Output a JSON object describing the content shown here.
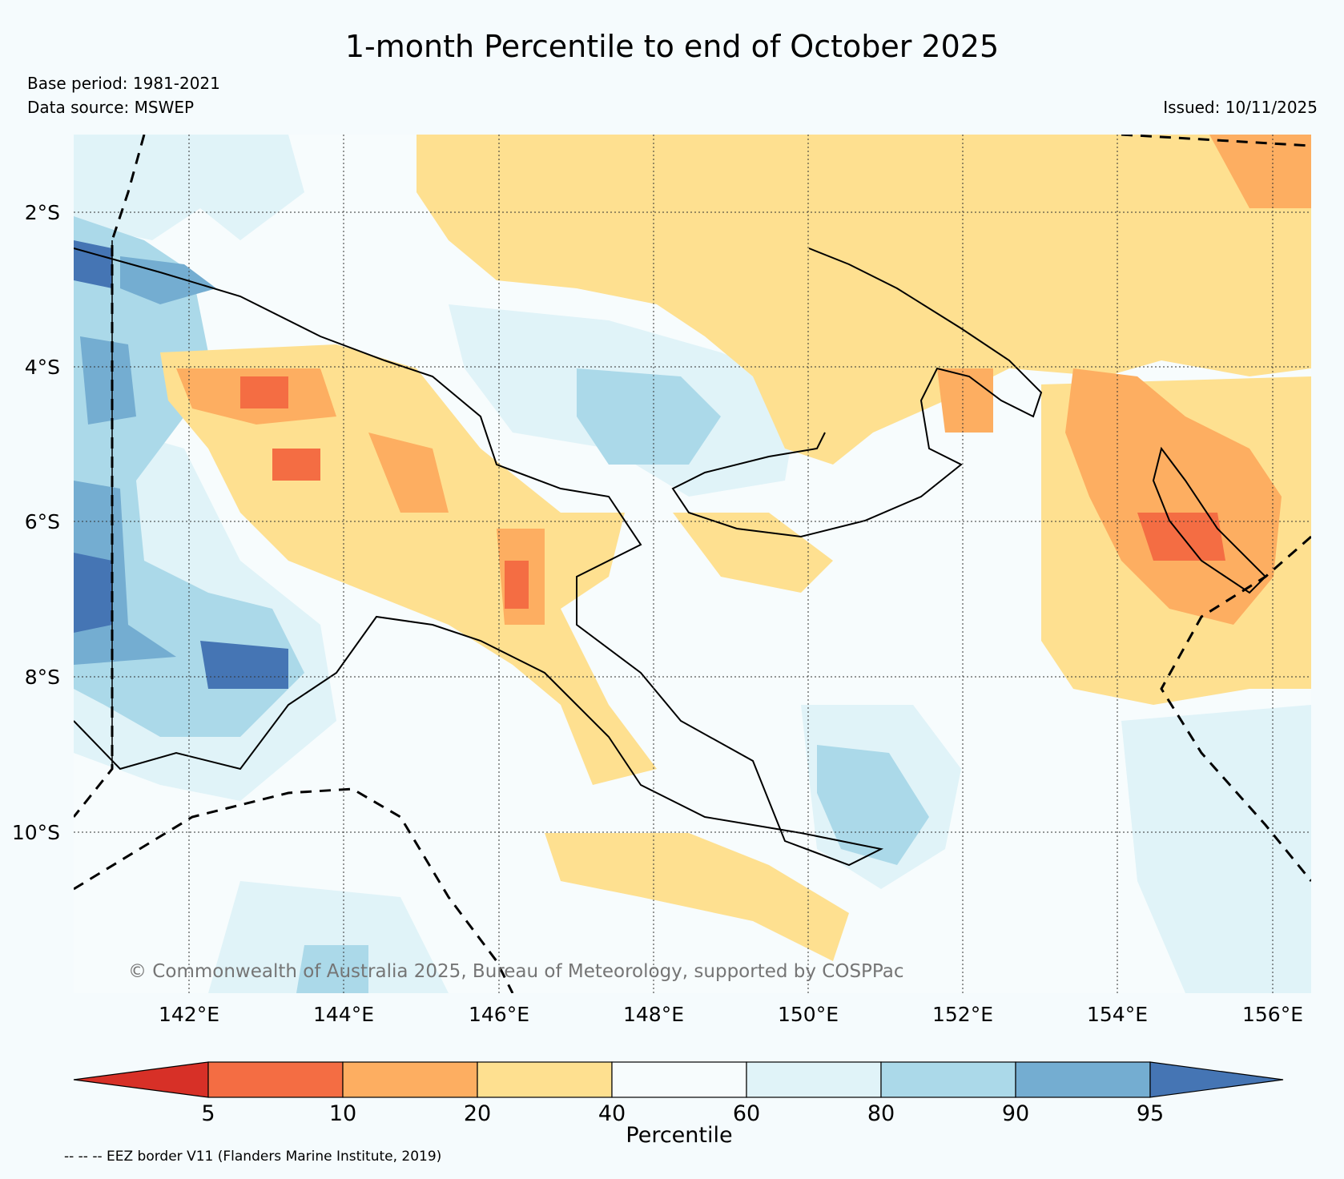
{
  "title": "1-month Percentile to end of October 2025",
  "base_period": "Base period: 1981-2021",
  "data_source": "Data source: MSWEP",
  "issued": "Issued: 10/11/2025",
  "lat_labels": [
    "2°S",
    "4°S",
    "6°S",
    "8°S",
    "10°S"
  ],
  "lon_labels": [
    "142°E",
    "144°E",
    "146°E",
    "148°E",
    "150°E",
    "152°E",
    "154°E",
    "156°E"
  ],
  "copyright": "© Commonwealth of Australia 2025, Bureau of Meteorology, supported by COSPPac",
  "colorbar": {
    "title": "Percentile",
    "ticks": [
      "5",
      "10",
      "20",
      "40",
      "60",
      "80",
      "90",
      "95"
    ],
    "colors": [
      "#d73027",
      "#f46d43",
      "#fdae61",
      "#fee090",
      "#f7fcfd",
      "#e0f3f8",
      "#abd9e9",
      "#74add1",
      "#4575b4"
    ]
  },
  "eez_note": "-- -- -- EEZ border V11 (Flanders Marine Institute, 2019)"
}
